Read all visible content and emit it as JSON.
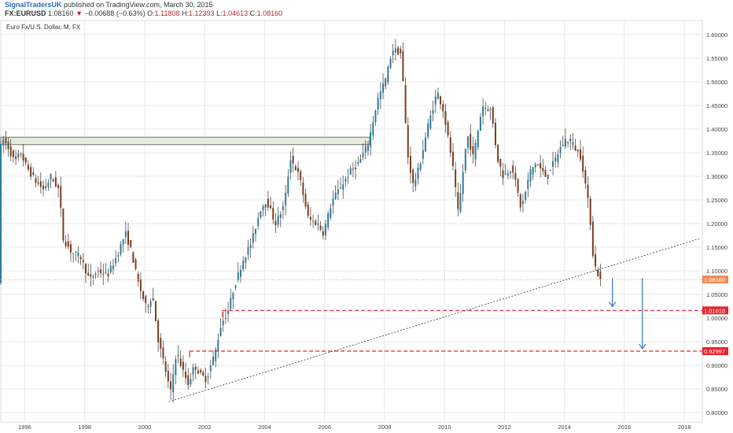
{
  "header": {
    "author": "SignalTradersUK",
    "published": "published on TradingView.com, March 30, 2015",
    "symbol": "FX:EURUSD",
    "price": "1.08160",
    "change": "−0.00688 (−0.63%)",
    "o_label": "O:",
    "o_value": "1.11808",
    "h_label": "H:",
    "h_value": "1.12393",
    "l_label": "L:",
    "l_value": "1.04613",
    "c_label": "C:",
    "c_value": "1.08160"
  },
  "colors": {
    "bull": "#2a7a9a",
    "bear": "#7a3a1a",
    "wick": "#333333",
    "grid": "#e8e8e8",
    "level_line": "#e8232a",
    "price_tag": "#f08a54",
    "level_tag": "#e8232a",
    "arrow": "#3f7fd0",
    "zone_fill": "#e6ecdc"
  },
  "chart_data": {
    "type": "candlestick",
    "title": "Euro Fx/U.S. Dollar, M, FX",
    "x_ticks": [
      "1996",
      "1998",
      "2000",
      "2002",
      "2004",
      "2006",
      "2008",
      "2010",
      "2012",
      "2014",
      "2016",
      "2018"
    ],
    "y_ticks": [
      "0.80000",
      "0.85000",
      "0.90000",
      "0.95000",
      "1.00000",
      "1.05000",
      "1.10000",
      "1.15000",
      "1.20000",
      "1.25000",
      "1.30000",
      "1.35000",
      "1.40000",
      "1.45000",
      "1.50000",
      "1.55000",
      "1.60000"
    ],
    "ylim": [
      0.78,
      1.63
    ],
    "xlim": [
      1995.2,
      2018.6
    ],
    "last_price": "1.08160",
    "levels": [
      {
        "label": "1.01618",
        "value": 1.01618,
        "start": 2002.6
      },
      {
        "label": "0.92997",
        "value": 0.92997,
        "start": 2001.5
      }
    ],
    "resistance_zone": {
      "low": 1.367,
      "high": 1.383,
      "from": 1995.2,
      "to": 2007.5
    },
    "trendline": {
      "x1": 2000.8,
      "y1": 0.823,
      "x2": 2018.5,
      "y2": 1.168
    },
    "arrows": [
      {
        "x": 2015.6,
        "from": 1.085,
        "to": 1.024
      },
      {
        "x": 2016.6,
        "from": 1.085,
        "to": 0.935
      }
    ],
    "anchors": [
      [
        1995.2,
        1.35
      ],
      [
        1995.3,
        1.38
      ],
      [
        1995.5,
        1.36
      ],
      [
        1995.7,
        1.33
      ],
      [
        1995.9,
        1.35
      ],
      [
        1996.1,
        1.32
      ],
      [
        1996.4,
        1.29
      ],
      [
        1996.7,
        1.27
      ],
      [
        1996.9,
        1.3
      ],
      [
        1997.2,
        1.27
      ],
      [
        1997.3,
        1.17
      ],
      [
        1997.6,
        1.14
      ],
      [
        1997.9,
        1.13
      ],
      [
        1998.2,
        1.08
      ],
      [
        1998.5,
        1.1
      ],
      [
        1998.8,
        1.09
      ],
      [
        1999.1,
        1.13
      ],
      [
        1999.4,
        1.18
      ],
      [
        1999.6,
        1.14
      ],
      [
        1999.8,
        1.08
      ],
      [
        2000.1,
        1.02
      ],
      [
        2000.3,
        1.05
      ],
      [
        2000.5,
        0.95
      ],
      [
        2000.7,
        0.9
      ],
      [
        2000.9,
        0.84
      ],
      [
        2001.1,
        0.93
      ],
      [
        2001.3,
        0.89
      ],
      [
        2001.5,
        0.86
      ],
      [
        2001.7,
        0.9
      ],
      [
        2001.9,
        0.88
      ],
      [
        2002.1,
        0.87
      ],
      [
        2002.4,
        0.93
      ],
      [
        2002.6,
        0.99
      ],
      [
        2002.8,
        1.01
      ],
      [
        2003.0,
        1.06
      ],
      [
        2003.3,
        1.12
      ],
      [
        2003.6,
        1.16
      ],
      [
        2003.9,
        1.23
      ],
      [
        2004.1,
        1.25
      ],
      [
        2004.4,
        1.2
      ],
      [
        2004.7,
        1.24
      ],
      [
        2004.9,
        1.34
      ],
      [
        2005.2,
        1.3
      ],
      [
        2005.5,
        1.21
      ],
      [
        2005.8,
        1.2
      ],
      [
        2006.0,
        1.18
      ],
      [
        2006.3,
        1.25
      ],
      [
        2006.6,
        1.28
      ],
      [
        2006.9,
        1.31
      ],
      [
        2007.2,
        1.33
      ],
      [
        2007.5,
        1.37
      ],
      [
        2007.8,
        1.46
      ],
      [
        2008.1,
        1.51
      ],
      [
        2008.3,
        1.57
      ],
      [
        2008.6,
        1.56
      ],
      [
        2008.8,
        1.35
      ],
      [
        2009.0,
        1.28
      ],
      [
        2009.2,
        1.32
      ],
      [
        2009.5,
        1.41
      ],
      [
        2009.8,
        1.48
      ],
      [
        2010.0,
        1.44
      ],
      [
        2010.3,
        1.33
      ],
      [
        2010.5,
        1.22
      ],
      [
        2010.8,
        1.39
      ],
      [
        2011.0,
        1.34
      ],
      [
        2011.3,
        1.45
      ],
      [
        2011.6,
        1.44
      ],
      [
        2011.8,
        1.34
      ],
      [
        2012.0,
        1.3
      ],
      [
        2012.3,
        1.32
      ],
      [
        2012.6,
        1.23
      ],
      [
        2012.9,
        1.31
      ],
      [
        2013.1,
        1.33
      ],
      [
        2013.4,
        1.3
      ],
      [
        2013.7,
        1.33
      ],
      [
        2013.9,
        1.36
      ],
      [
        2014.1,
        1.38
      ],
      [
        2014.3,
        1.37
      ],
      [
        2014.6,
        1.34
      ],
      [
        2014.8,
        1.26
      ],
      [
        2014.9,
        1.21
      ],
      [
        2015.0,
        1.13
      ],
      [
        2015.1,
        1.1
      ],
      [
        2015.25,
        1.0816
      ]
    ]
  }
}
